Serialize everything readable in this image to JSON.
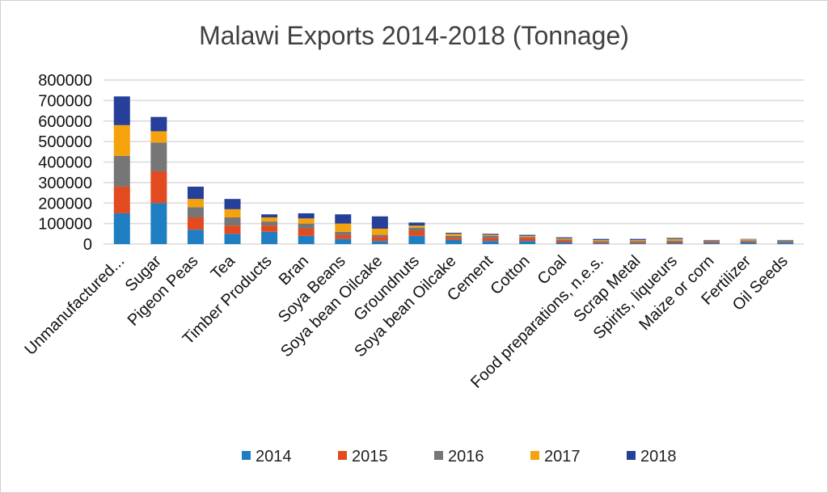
{
  "chart_data": {
    "type": "bar",
    "stacked": true,
    "title": "Malawi Exports  2014-2018 (Tonnage)",
    "xlabel": "",
    "ylabel": "",
    "ylim": [
      0,
      800000
    ],
    "yticks": [
      0,
      100000,
      200000,
      300000,
      400000,
      500000,
      600000,
      700000,
      800000
    ],
    "ytick_labels": [
      "0",
      "100000",
      "200000",
      "300000",
      "400000",
      "500000",
      "600000",
      "700000",
      "800000"
    ],
    "grid": true,
    "legend_position": "bottom",
    "categories": [
      "Unmanufactured...",
      "Sugar",
      "Pigeon Peas",
      "Tea",
      "Timber Products",
      "Bran",
      "Soya Beans",
      "Soya bean Oilcake",
      "Groundnuts",
      "Soya bean Oilcake",
      "Cement",
      "Cotton",
      "Coal",
      "Food preparations, n.e.s.",
      "Scrap Metal",
      "Spirits, liqueurs",
      "Maize or corn",
      "Fertilizer",
      "Oil Seeds"
    ],
    "series": [
      {
        "name": "2014",
        "color": "#1f7ec2",
        "values": [
          150000,
          200000,
          70000,
          50000,
          60000,
          40000,
          25000,
          15000,
          40000,
          20000,
          15000,
          15000,
          8000,
          5000,
          5000,
          6000,
          6000,
          8000,
          8000
        ]
      },
      {
        "name": "2015",
        "color": "#e24a1f",
        "values": [
          130000,
          155000,
          60000,
          40000,
          30000,
          35000,
          20000,
          20000,
          25000,
          10000,
          15000,
          15000,
          10000,
          5000,
          5000,
          6000,
          5000,
          5000,
          3000
        ]
      },
      {
        "name": "2016",
        "color": "#767676",
        "values": [
          150000,
          140000,
          50000,
          40000,
          20000,
          25000,
          15000,
          10000,
          15000,
          10000,
          10000,
          5000,
          5000,
          5000,
          5000,
          5000,
          5000,
          5000,
          5000
        ]
      },
      {
        "name": "2017",
        "color": "#f5a30d",
        "values": [
          150000,
          55000,
          40000,
          40000,
          20000,
          25000,
          40000,
          30000,
          10000,
          10000,
          5000,
          5000,
          5000,
          5000,
          5000,
          8000,
          2000,
          5000,
          2000
        ]
      },
      {
        "name": "2018",
        "color": "#253f9a",
        "values": [
          140000,
          70000,
          60000,
          50000,
          15000,
          25000,
          45000,
          60000,
          15000,
          5000,
          5000,
          5000,
          5000,
          5000,
          5000,
          5000,
          2000,
          2000,
          2000
        ]
      }
    ]
  }
}
